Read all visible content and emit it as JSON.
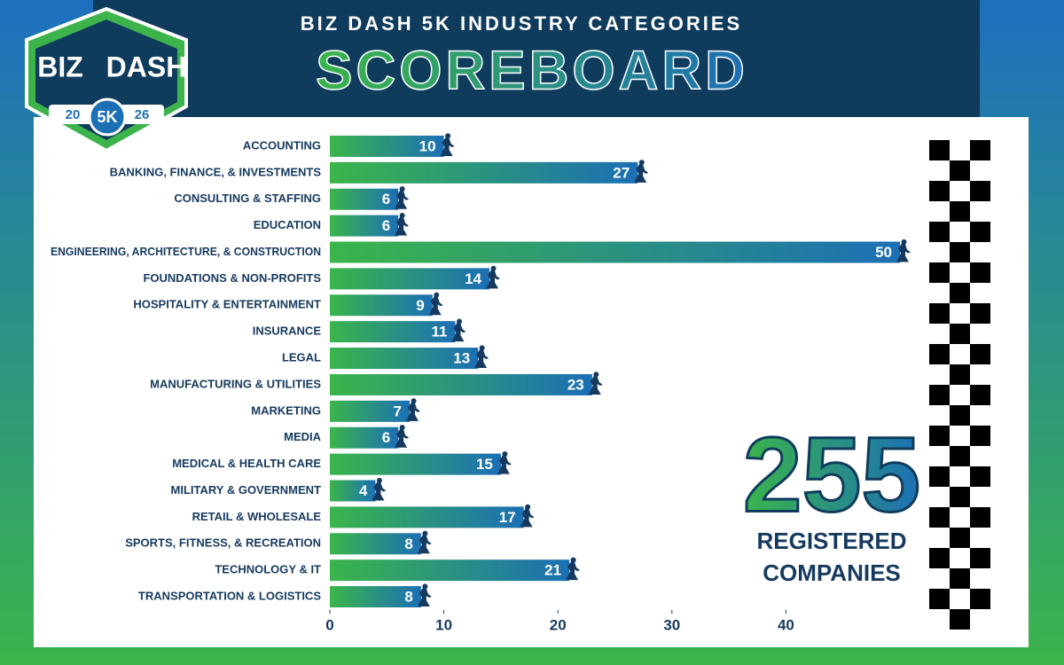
{
  "chart_data": {
    "type": "hbar",
    "title": "BIZ DASH 5K INDUSTRY CATEGORIES",
    "subtitle": "SCOREBOARD",
    "categories": [
      "ACCOUNTING",
      "BANKING, FINANCE, & INVESTMENTS",
      "CONSULTING & STAFFING",
      "EDUCATION",
      "ENGINEERING, ARCHITECTURE, & CONSTRUCTION",
      "FOUNDATIONS & NON-PROFITS",
      "HOSPITALITY & ENTERTAINMENT",
      "INSURANCE",
      "LEGAL",
      "MANUFACTURING & UTILITIES",
      "MARKETING",
      "MEDIA",
      "MEDICAL & HEALTH CARE",
      "MILITARY & GOVERNMENT",
      "RETAIL & WHOLESALE",
      "SPORTS, FITNESS, & RECREATION",
      "TECHNOLOGY & IT",
      "TRANSPORTATION & LOGISTICS"
    ],
    "values": [
      10,
      27,
      6,
      6,
      50,
      14,
      9,
      11,
      13,
      23,
      7,
      6,
      15,
      4,
      17,
      8,
      21,
      8
    ],
    "colors": [
      "#3ab54a",
      "#1c6fb5"
    ],
    "xlim": [
      0,
      50
    ],
    "xticks": [
      0,
      10,
      20,
      30,
      40
    ],
    "total": 255,
    "total_label": [
      "REGISTERED",
      "COMPANIES"
    ],
    "logo": {
      "top": [
        "BIZ",
        "DASH"
      ],
      "year": [
        "20",
        "26"
      ],
      "badge": "5K"
    }
  }
}
